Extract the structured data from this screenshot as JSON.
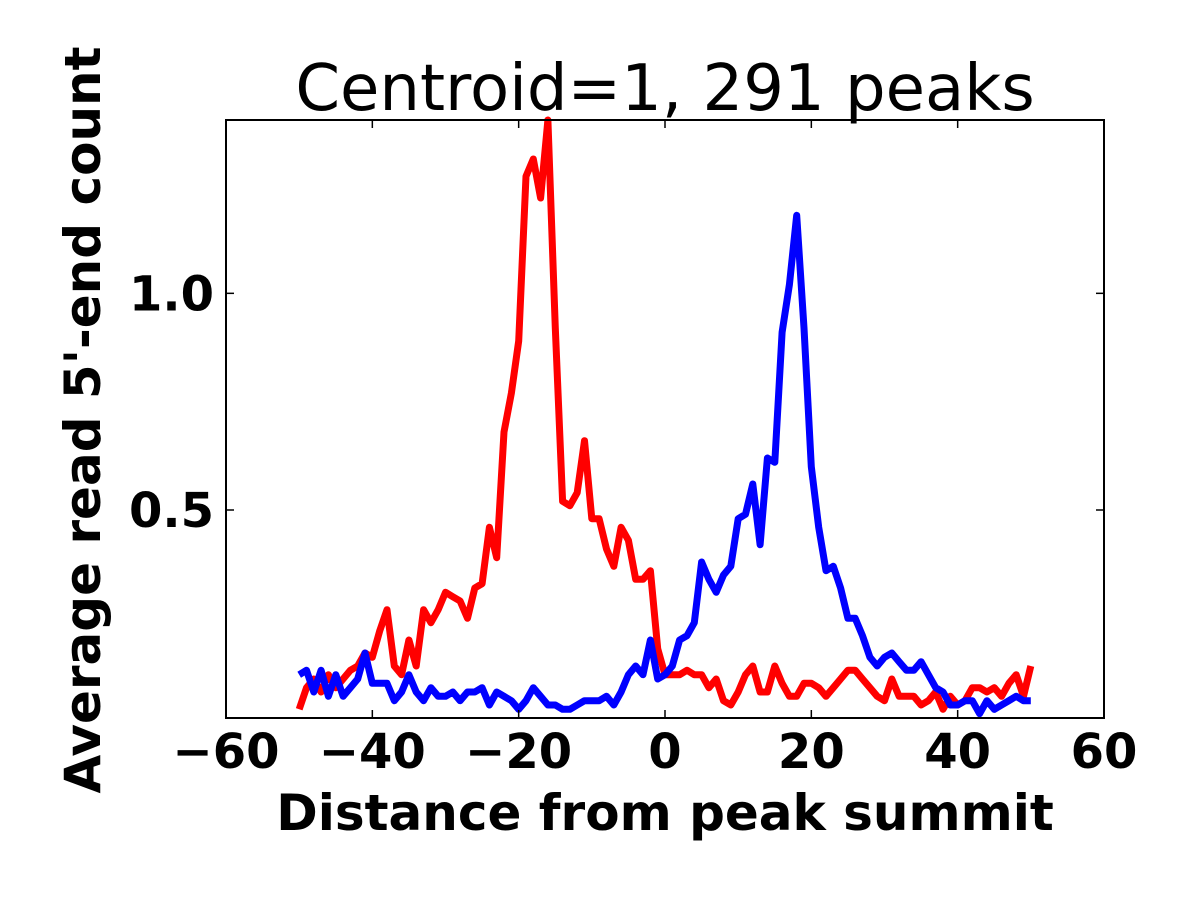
{
  "chart_data": {
    "type": "line",
    "title": "Centroid=1, 291 peaks",
    "xlabel": "Distance from peak summit",
    "ylabel": "Average read 5'-end count",
    "xlim": [
      -60,
      60
    ],
    "ylim": [
      0.02,
      1.4
    ],
    "xticks": [
      -60,
      -40,
      -20,
      0,
      20,
      40,
      60
    ],
    "xtick_labels": [
      "−60",
      "−40",
      "−20",
      "0",
      "20",
      "40",
      "60"
    ],
    "yticks": [
      0.5,
      1.0
    ],
    "ytick_labels": [
      "0.5",
      "1.0"
    ],
    "grid": false,
    "legend": "none",
    "x": [
      -50,
      -49,
      -48,
      -47,
      -46,
      -45,
      -44,
      -43,
      -42,
      -41,
      -40,
      -39,
      -38,
      -37,
      -36,
      -35,
      -34,
      -33,
      -32,
      -31,
      -30,
      -29,
      -28,
      -27,
      -26,
      -25,
      -24,
      -23,
      -22,
      -21,
      -20,
      -19,
      -18,
      -17,
      -16,
      -15,
      -14,
      -13,
      -12,
      -11,
      -10,
      -9,
      -8,
      -7,
      -6,
      -5,
      -4,
      -3,
      -2,
      -1,
      0,
      1,
      2,
      3,
      4,
      5,
      6,
      7,
      8,
      9,
      10,
      11,
      12,
      13,
      14,
      15,
      16,
      17,
      18,
      19,
      20,
      21,
      22,
      23,
      24,
      25,
      26,
      27,
      28,
      29,
      30,
      31,
      32,
      33,
      34,
      35,
      36,
      37,
      38,
      39,
      40,
      41,
      42,
      43,
      44,
      45,
      46,
      47,
      48,
      49,
      50
    ],
    "series": [
      {
        "color": "#ff0000",
        "values": [
          0.04,
          0.09,
          0.11,
          0.08,
          0.12,
          0.09,
          0.11,
          0.13,
          0.14,
          0.17,
          0.16,
          0.22,
          0.27,
          0.14,
          0.12,
          0.2,
          0.14,
          0.27,
          0.24,
          0.27,
          0.31,
          0.3,
          0.29,
          0.25,
          0.32,
          0.33,
          0.46,
          0.39,
          0.68,
          0.77,
          0.89,
          1.27,
          1.31,
          1.22,
          1.4,
          0.92,
          0.52,
          0.51,
          0.54,
          0.66,
          0.48,
          0.48,
          0.41,
          0.37,
          0.46,
          0.43,
          0.34,
          0.34,
          0.36,
          0.18,
          0.12,
          0.12,
          0.12,
          0.13,
          0.12,
          0.12,
          0.09,
          0.11,
          0.06,
          0.05,
          0.08,
          0.12,
          0.14,
          0.08,
          0.08,
          0.14,
          0.1,
          0.07,
          0.07,
          0.1,
          0.1,
          0.09,
          0.07,
          0.09,
          0.11,
          0.13,
          0.13,
          0.11,
          0.09,
          0.07,
          0.06,
          0.11,
          0.07,
          0.07,
          0.07,
          0.05,
          0.06,
          0.08,
          0.04,
          0.07,
          0.05,
          0.06,
          0.09,
          0.09,
          0.08,
          0.09,
          0.07,
          0.1,
          0.12,
          0.07,
          0.14
        ]
      },
      {
        "color": "#0000ff",
        "values": [
          0.12,
          0.13,
          0.08,
          0.13,
          0.07,
          0.12,
          0.07,
          0.09,
          0.11,
          0.17,
          0.1,
          0.1,
          0.1,
          0.06,
          0.08,
          0.12,
          0.08,
          0.06,
          0.09,
          0.07,
          0.07,
          0.08,
          0.06,
          0.08,
          0.08,
          0.09,
          0.05,
          0.08,
          0.07,
          0.06,
          0.04,
          0.06,
          0.09,
          0.07,
          0.05,
          0.05,
          0.04,
          0.04,
          0.05,
          0.06,
          0.06,
          0.06,
          0.07,
          0.05,
          0.08,
          0.12,
          0.14,
          0.12,
          0.2,
          0.11,
          0.12,
          0.14,
          0.2,
          0.21,
          0.24,
          0.38,
          0.34,
          0.31,
          0.35,
          0.37,
          0.48,
          0.49,
          0.56,
          0.42,
          0.62,
          0.61,
          0.91,
          1.02,
          1.18,
          0.92,
          0.6,
          0.46,
          0.36,
          0.37,
          0.32,
          0.25,
          0.25,
          0.21,
          0.16,
          0.14,
          0.16,
          0.17,
          0.15,
          0.13,
          0.13,
          0.15,
          0.12,
          0.09,
          0.08,
          0.05,
          0.05,
          0.06,
          0.06,
          0.03,
          0.06,
          0.04,
          0.05,
          0.06,
          0.07,
          0.06,
          0.06
        ]
      }
    ]
  }
}
